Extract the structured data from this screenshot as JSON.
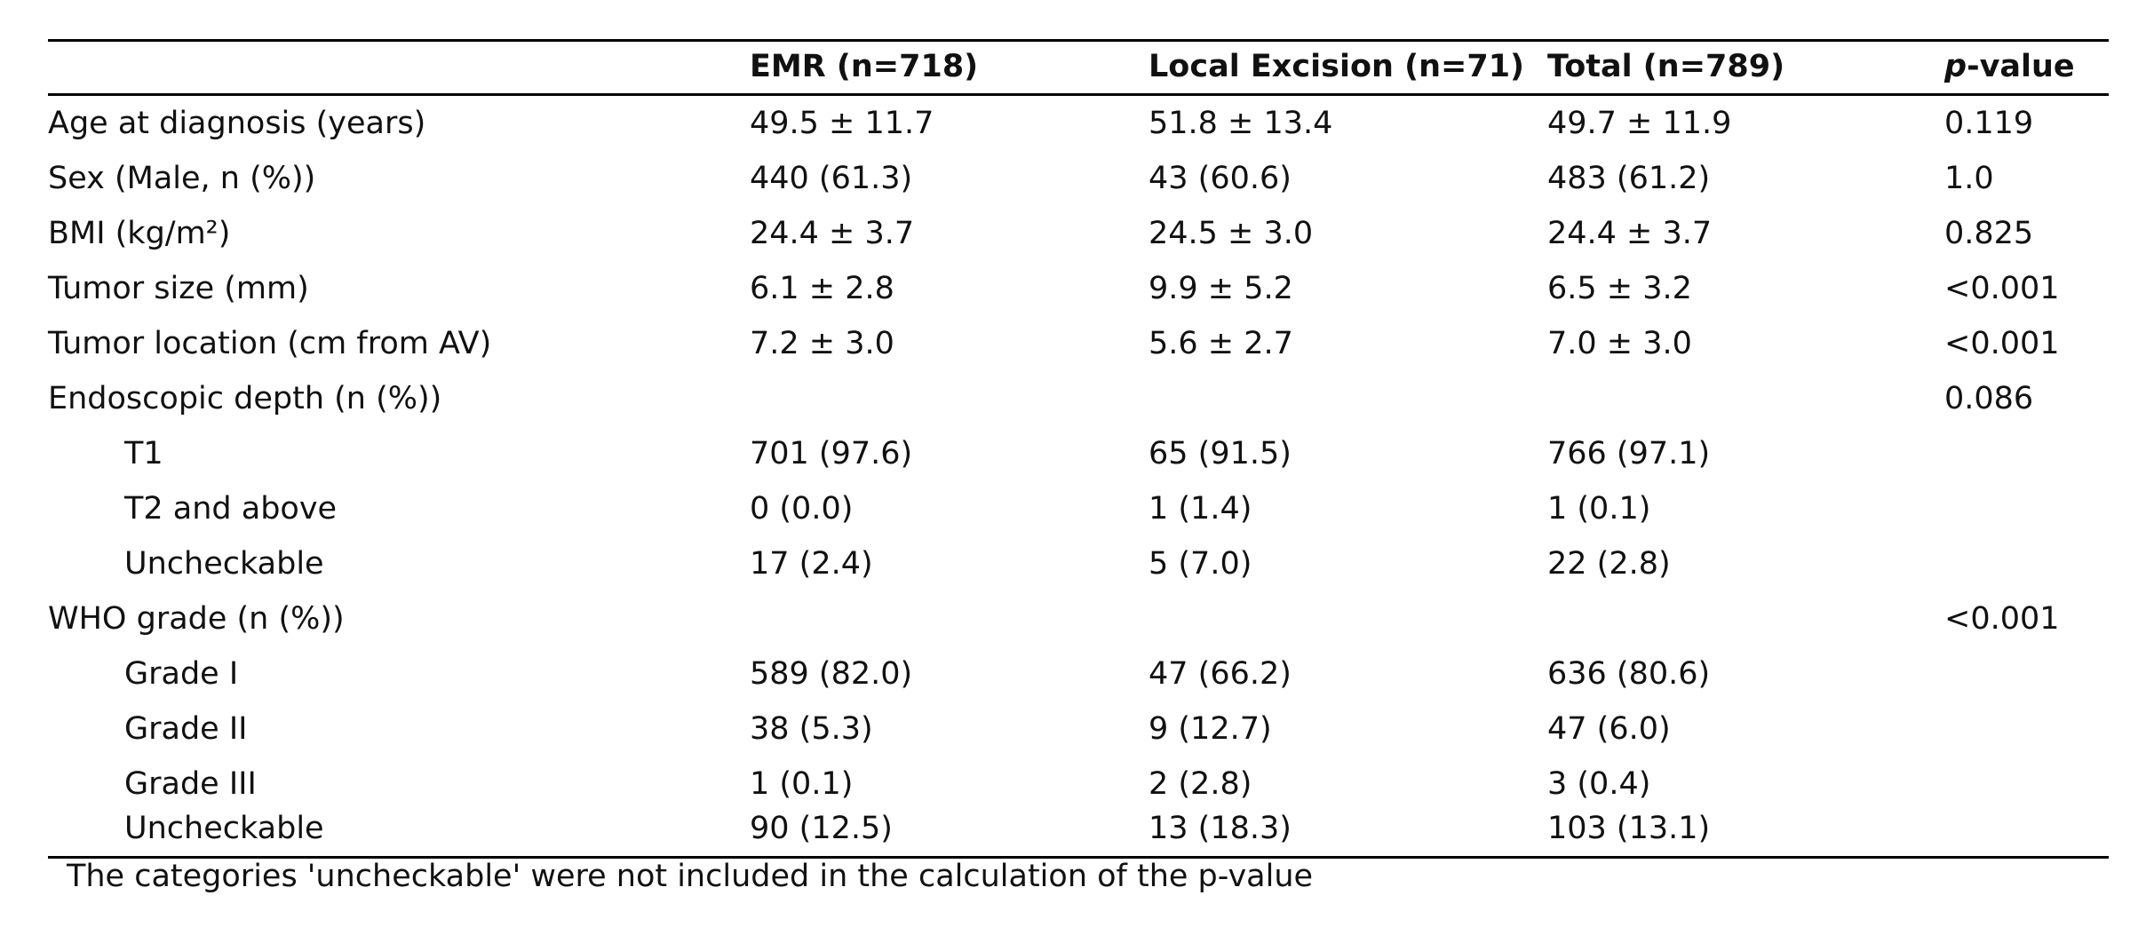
{
  "header": {
    "col1": "EMR (n=718)",
    "col2": "Local Excision (n=71)",
    "col3": "Total (n=789)",
    "col4_italic": "p",
    "col4_rest": "-value"
  },
  "rows": [
    {
      "label": "Age at diagnosis (years)",
      "emr": "49.5 ± 11.7",
      "local": "51.8 ± 13.4",
      "total": "49.7 ± 11.9",
      "p": "0.119"
    },
    {
      "label": "Sex (Male, n (%))",
      "emr": "440 (61.3)",
      "local": "43 (60.6)",
      "total": "483 (61.2)",
      "p": "1.0"
    },
    {
      "label": "BMI (kg/m²)",
      "emr": "24.4 ± 3.7",
      "local": "24.5 ± 3.0",
      "total": "24.4 ± 3.7",
      "p": "0.825"
    },
    {
      "label": "Tumor size (mm)",
      "emr": "6.1 ± 2.8",
      "local": "9.9 ± 5.2",
      "total": "6.5 ± 3.2",
      "p": "<0.001"
    },
    {
      "label": "Tumor location (cm from AV)",
      "emr": "7.2 ± 3.0",
      "local": "5.6 ± 2.7",
      "total": "7.0 ± 3.0",
      "p": "<0.001"
    },
    {
      "label": "Endoscopic depth (n (%))",
      "emr": "",
      "local": "",
      "total": "",
      "p": "0.086"
    },
    {
      "label": "T1",
      "emr": "701 (97.6)",
      "local": "65 (91.5)",
      "total": "766 (97.1)",
      "p": ""
    },
    {
      "label": "T2 and above",
      "emr": "0 (0.0)",
      "local": "1 (1.4)",
      "total": "1 (0.1)",
      "p": ""
    },
    {
      "label": "Uncheckable",
      "emr": "17 (2.4)",
      "local": "5 (7.0)",
      "total": "22 (2.8)",
      "p": ""
    },
    {
      "label": "WHO grade (n (%))",
      "emr": "",
      "local": "",
      "total": "",
      "p": "<0.001"
    },
    {
      "label": "Grade I",
      "emr": "589 (82.0)",
      "local": "47 (66.2)",
      "total": "636 (80.6)",
      "p": ""
    },
    {
      "label": "Grade II",
      "emr": "38 (5.3)",
      "local": "9 (12.7)",
      "total": "47 (6.0)",
      "p": ""
    },
    {
      "label": "Grade III",
      "emr": "1 (0.1)",
      "local": "2 (2.8)",
      "total": "3 (0.4)",
      "p": ""
    },
    {
      "label": "Uncheckable",
      "emr": "90 (12.5)",
      "local": "13 (18.3)",
      "total": "103 (13.1)",
      "p": ""
    }
  ],
  "footnote": "The categories 'uncheckable' were not included in the calculation of the p-value"
}
